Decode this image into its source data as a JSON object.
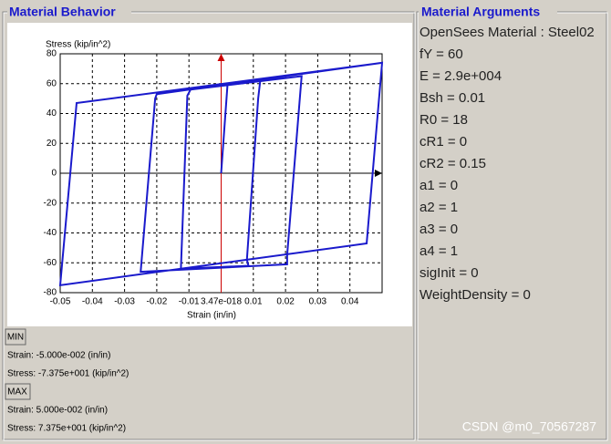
{
  "left_panel": {
    "title": "Material Behavior"
  },
  "chart_data": {
    "type": "line",
    "y_label": "Stress (kip/in^2)",
    "x_label": "Strain (in/in)",
    "x": [
      0,
      0.002,
      0.0122,
      0.0115,
      0.008,
      0.0085,
      -0.0125,
      -0.0105,
      -0.0095,
      0.025,
      0.0205,
      0.0205,
      -0.025,
      -0.0205,
      -0.02,
      0.05,
      0.0452,
      -0.05,
      -0.0449,
      0.05
    ],
    "series": [
      {
        "color": "#1a1acc",
        "values": [
          0,
          60,
          63,
          50,
          -58,
          -62,
          -64,
          52,
          56,
          65,
          -55,
          -61,
          -66,
          50,
          53,
          74,
          -47,
          -75,
          47,
          74
        ]
      }
    ],
    "xlim": [
      -0.05,
      0.05
    ],
    "ylim": [
      -80,
      80
    ],
    "xticks": [
      -0.05,
      -0.04,
      -0.03,
      -0.02,
      -0.01,
      {
        "value": 3.47e-18,
        "label": "3.47e-018"
      },
      0.01,
      0.02,
      0.03,
      0.04
    ],
    "yticks": [
      80,
      60,
      40,
      20,
      0,
      -20,
      -40,
      -60,
      -80
    ],
    "grid": true
  },
  "min": {
    "button": "MIN",
    "strain": "Strain: -5.000e-002 (in/in)",
    "stress": "Stress: -7.375e+001 (kip/in^2)"
  },
  "max": {
    "button": "MAX",
    "strain": "Strain: 5.000e-002 (in/in)",
    "stress": "Stress: 7.375e+001 (kip/in^2)"
  },
  "right_panel": {
    "title": "Material Arguments",
    "lines": [
      "OpenSees Material : Steel02",
      "fY = 60",
      "E = 2.9e+004",
      "Bsh = 0.01",
      "R0 = 18",
      "cR1 = 0",
      "cR2 = 0.15",
      "a1 = 0",
      "a2 = 1",
      "a3 = 0",
      "a4 = 1",
      "sigInit = 0",
      "WeightDensity = 0"
    ]
  },
  "watermark": "CSDN @m0_70567287"
}
